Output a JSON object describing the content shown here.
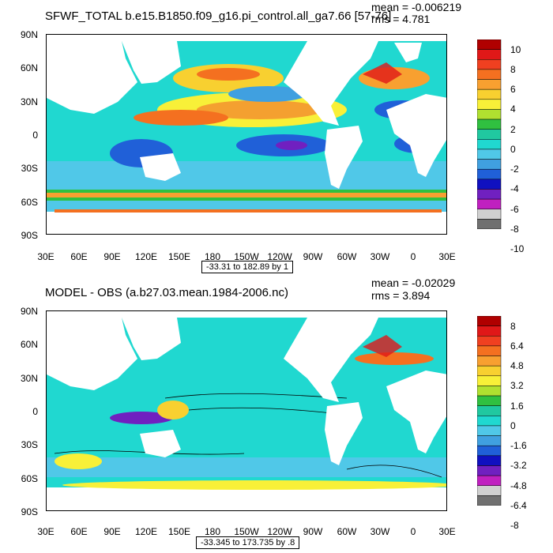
{
  "panels": [
    {
      "title": "SFWF_TOTAL b.e15.B1850.f09_g16.pi_control.all_ga7.66 [57-76]",
      "mean": "mean = -0.006219",
      "rms": "rms = 4.781",
      "range": "-33.31 to 182.89 by 1",
      "colorbar_labels": [
        "10",
        "8",
        "6",
        "4",
        "2",
        "0",
        "-2",
        "-4",
        "-6",
        "-8",
        "-10"
      ]
    },
    {
      "title": "MODEL - OBS (a.b27.03.mean.1984-2006.nc)",
      "mean": "mean = -0.02029",
      "rms": "rms = 3.894",
      "range": "-33.345 to 173.735 by .8",
      "colorbar_labels": [
        "8",
        "6.4",
        "4.8",
        "3.2",
        "1.6",
        "0",
        "-1.6",
        "-3.2",
        "-4.8",
        "-6.4",
        "-8"
      ]
    }
  ],
  "axes": {
    "lat_labels": [
      "90N",
      "60N",
      "30N",
      "0",
      "30S",
      "60S",
      "90S"
    ],
    "lon_labels": [
      "30E",
      "60E",
      "90E",
      "120E",
      "150E",
      "180",
      "150W",
      "120W",
      "90W",
      "60W",
      "30W",
      "0",
      "30E"
    ]
  },
  "colorbar_colors": [
    "#b00000",
    "#e01818",
    "#f04020",
    "#f47020",
    "#f8a030",
    "#f8d030",
    "#f8f038",
    "#b0e030",
    "#30c040",
    "#20c8a0",
    "#20d8d0",
    "#50c8e8",
    "#40a0e0",
    "#2060d8",
    "#1010c0",
    "#7020c0",
    "#c020c0",
    "#d0d0d0",
    "#707070"
  ]
}
